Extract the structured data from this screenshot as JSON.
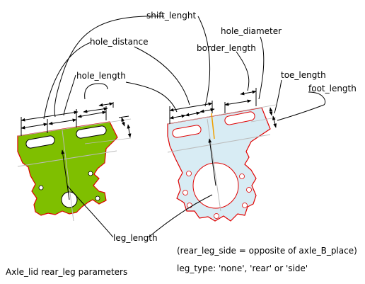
{
  "labels": {
    "shift_length": "shift_lenght",
    "hole_diameter": "hole_diameter",
    "hole_distance": "hole_distance",
    "border_length": "border_length",
    "hole_length": "hole_length",
    "toe_length": "toe_length",
    "foot_length": "foot_length",
    "leg_length": "leg_length"
  },
  "notes": {
    "title": "Axle_lid rear_leg parameters",
    "side_note": "(rear_leg_side = opposite of axle_B_place)",
    "type_note": "leg_type: 'none', 'rear' or 'side'"
  },
  "colors": {
    "left_leg_fill": "#7fbf00",
    "right_leg_fill": "#d8ecf4",
    "outline": "#e00000",
    "axis_line": "#aaaaaa",
    "dimension": "#000000"
  }
}
